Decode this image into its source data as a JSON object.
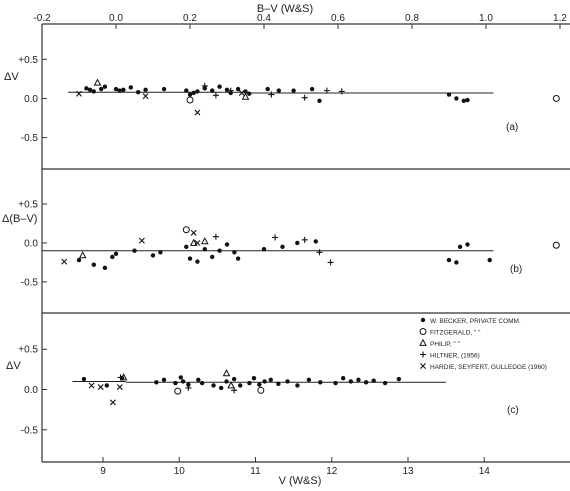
{
  "chart_data": [
    {
      "panel": "(a)",
      "type": "scatter",
      "ylabel": "ΔV",
      "top_axis_label": "B–V (W&S)",
      "top_axis_ticks": [
        "-0.2",
        "0.0",
        "0.2",
        "0.4",
        "0.6",
        "0.8",
        "1.0",
        "1.2"
      ],
      "top_xlim": [
        -0.2,
        1.2
      ],
      "yticks": [
        "+0.5",
        "0.0",
        "-0.5"
      ],
      "ylim": [
        -0.9,
        0.95
      ],
      "fit_segments": [
        {
          "x": [
            -0.13,
            0.19
          ],
          "y": [
            0.08,
            0.08
          ]
        },
        {
          "x": [
            0.19,
            0.35
          ],
          "y": [
            0.08,
            0.08
          ]
        },
        {
          "x": [
            0.35,
            1.02
          ],
          "y": [
            0.07,
            0.07
          ]
        }
      ],
      "series": [
        {
          "marker": "dot",
          "x": [
            -0.08,
            -0.07,
            -0.06,
            -0.04,
            -0.03,
            0.0,
            0.01,
            0.02,
            0.04,
            0.06,
            0.08,
            0.13,
            0.19,
            0.2,
            0.21,
            0.22,
            0.24,
            0.26,
            0.28,
            0.3,
            0.31,
            0.33,
            0.35,
            0.36,
            0.41,
            0.44,
            0.48,
            0.53,
            0.55,
            0.9,
            0.92,
            0.94,
            0.95
          ],
          "y": [
            0.13,
            0.11,
            0.09,
            0.12,
            0.15,
            0.12,
            0.1,
            0.11,
            0.14,
            0.08,
            0.11,
            0.12,
            0.1,
            0.05,
            0.07,
            0.09,
            0.13,
            0.1,
            0.15,
            0.11,
            0.07,
            0.12,
            0.09,
            0.06,
            0.12,
            0.1,
            0.1,
            0.12,
            -0.03,
            0.05,
            0.0,
            -0.03,
            -0.02
          ]
        },
        {
          "marker": "circle",
          "x": [
            0.2,
            1.19
          ],
          "y": [
            -0.02,
            0.0
          ]
        },
        {
          "marker": "triangle",
          "x": [
            -0.05,
            0.35
          ],
          "y": [
            0.2,
            0.02
          ]
        },
        {
          "marker": "plus",
          "x": [
            0.24,
            0.27,
            0.31,
            0.42,
            0.51,
            0.57,
            0.61
          ],
          "y": [
            0.16,
            0.04,
            0.1,
            0.05,
            0.01,
            0.1,
            0.09
          ]
        },
        {
          "marker": "cross",
          "x": [
            -0.1,
            0.08,
            0.22,
            0.34
          ],
          "y": [
            0.06,
            0.03,
            -0.18,
            0.07
          ]
        }
      ],
      "annotation": "(a)"
    },
    {
      "panel": "(b)",
      "type": "scatter",
      "ylabel": "Δ(B–V)",
      "yticks": [
        "+0.5",
        "0.0",
        "-0.5"
      ],
      "ylim": [
        -0.9,
        0.95
      ],
      "fit_segments": [
        {
          "x": [
            -0.2,
            0.02
          ],
          "y": [
            -0.1,
            -0.1
          ]
        },
        {
          "x": [
            0.02,
            0.34
          ],
          "y": [
            -0.1,
            -0.1
          ]
        },
        {
          "x": [
            0.34,
            1.02
          ],
          "y": [
            -0.1,
            -0.1
          ]
        }
      ],
      "series": [
        {
          "marker": "dot",
          "x": [
            -0.1,
            -0.06,
            -0.03,
            -0.01,
            0.0,
            0.05,
            0.1,
            0.12,
            0.19,
            0.2,
            0.22,
            0.24,
            0.26,
            0.28,
            0.3,
            0.32,
            0.33,
            0.4,
            0.45,
            0.49,
            0.54,
            0.9,
            0.92,
            0.93,
            0.95,
            1.01
          ],
          "y": [
            -0.22,
            -0.28,
            -0.32,
            -0.18,
            -0.14,
            -0.1,
            -0.16,
            -0.12,
            -0.05,
            -0.2,
            -0.24,
            -0.08,
            -0.18,
            -0.1,
            -0.02,
            -0.12,
            -0.2,
            -0.08,
            -0.05,
            0.0,
            0.02,
            -0.22,
            -0.25,
            -0.05,
            -0.02,
            -0.22
          ]
        },
        {
          "marker": "circle",
          "x": [
            0.19,
            1.19
          ],
          "y": [
            0.17,
            -0.03
          ]
        },
        {
          "marker": "triangle",
          "x": [
            -0.09,
            0.21,
            0.24
          ],
          "y": [
            -0.16,
            0.0,
            0.02
          ]
        },
        {
          "marker": "plus",
          "x": [
            0.27,
            0.43,
            0.51,
            0.55,
            0.58
          ],
          "y": [
            0.08,
            0.07,
            0.04,
            -0.12,
            -0.25
          ]
        },
        {
          "marker": "cross",
          "x": [
            -0.14,
            0.07,
            0.21,
            0.22
          ],
          "y": [
            -0.24,
            0.03,
            0.13,
            0.0
          ]
        }
      ],
      "annotation": "(b)"
    },
    {
      "panel": "(c)",
      "type": "scatter",
      "xlabel": "V (W&S)",
      "ylabel": "ΔV",
      "xticks": [
        "9",
        "10",
        "11",
        "12",
        "13",
        "14"
      ],
      "xlim": [
        8.2,
        14.6
      ],
      "yticks": [
        "+0.5",
        "0.0",
        "-0.5"
      ],
      "ylim": [
        -0.9,
        0.95
      ],
      "fit_segments": [
        {
          "x": [
            8.6,
            9.3
          ],
          "y": [
            0.1,
            0.1
          ]
        },
        {
          "x": [
            9.3,
            9.8
          ],
          "y": [
            0.09,
            0.09
          ]
        },
        {
          "x": [
            9.8,
            10.5
          ],
          "y": [
            0.09,
            0.09
          ]
        },
        {
          "x": [
            10.5,
            12.0
          ],
          "y": [
            0.09,
            0.09
          ]
        },
        {
          "x": [
            12.0,
            13.5
          ],
          "y": [
            0.09,
            0.09
          ]
        }
      ],
      "series": [
        {
          "name": "W. BECKER, PRIVATE COMM.",
          "marker": "dot",
          "x": [
            8.75,
            9.05,
            9.25,
            9.7,
            9.8,
            9.95,
            10.02,
            10.05,
            10.12,
            10.25,
            10.3,
            10.45,
            10.55,
            10.62,
            10.72,
            10.8,
            10.92,
            10.98,
            11.05,
            11.12,
            11.2,
            11.3,
            11.42,
            11.55,
            11.7,
            11.85,
            12.05,
            12.15,
            12.25,
            12.35,
            12.45,
            12.55,
            12.7,
            12.88
          ],
          "y": [
            0.13,
            0.05,
            0.14,
            0.09,
            0.12,
            0.08,
            0.15,
            0.1,
            0.06,
            0.12,
            0.08,
            0.05,
            0.02,
            0.1,
            0.13,
            0.05,
            0.08,
            0.14,
            0.06,
            0.1,
            0.12,
            0.07,
            0.1,
            0.05,
            0.12,
            0.09,
            0.08,
            0.14,
            0.1,
            0.12,
            0.09,
            0.11,
            0.08,
            0.13
          ]
        },
        {
          "name": "FITZGERALD",
          "marker": "circle",
          "x": [
            9.98,
            11.07
          ],
          "y": [
            -0.02,
            -0.01
          ]
        },
        {
          "name": "PHILIP",
          "marker": "triangle",
          "x": [
            9.27,
            10.62,
            10.68
          ],
          "y": [
            0.15,
            0.2,
            0.05
          ]
        },
        {
          "name": "HILTNER, (1956)",
          "marker": "plus",
          "x": [
            9.23,
            10.12,
            10.72
          ],
          "y": [
            0.15,
            0.02,
            -0.01
          ]
        },
        {
          "name": "HARDIE, SEYFERT, GULLEDGE (1960)",
          "marker": "cross",
          "x": [
            8.85,
            8.97,
            9.13,
            9.22
          ],
          "y": [
            0.05,
            0.03,
            -0.16,
            0.03
          ]
        }
      ],
      "legend_location": "top-right",
      "legend_entries": [
        "W. BECKER, PRIVATE COMM.",
        "FITZGERALD,   \"        \"",
        "PHILIP,         \"        \"",
        "HILTNER,  (1956)",
        "HARDIE, SEYFERT, GULLEDGE  (1960)"
      ],
      "annotation": "(c)"
    }
  ]
}
